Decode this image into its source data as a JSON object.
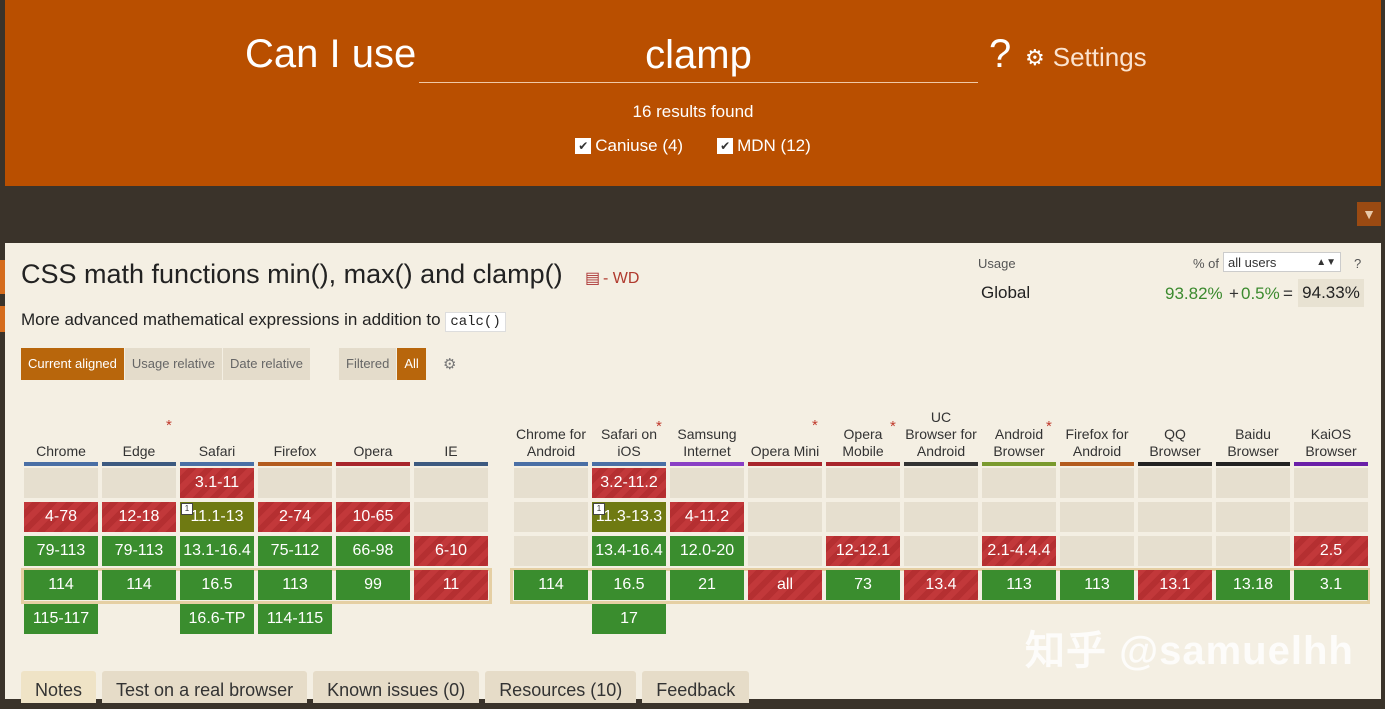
{
  "search": {
    "prefix": "Can I use",
    "query": "clamp",
    "suffix": "?",
    "settings_label": "Settings"
  },
  "results": {
    "summary": "16 results found"
  },
  "filters": [
    {
      "label": "Caniuse (4)",
      "checked": true
    },
    {
      "label": "MDN (12)",
      "checked": true
    }
  ],
  "feature": {
    "title": "CSS math functions min(), max() and clamp()",
    "status": "- WD",
    "description_prefix": "More advanced mathematical expressions in addition to",
    "description_code": "calc()"
  },
  "usage": {
    "label": "Usage",
    "percent_of": "% of",
    "user_select": "all users",
    "help": "?",
    "region": "Global",
    "full": "93.82%",
    "plus": "+",
    "partial": "0.5%",
    "equals": "=",
    "total": "94.33%"
  },
  "view_buttons": [
    "Current aligned",
    "Usage relative",
    "Date relative"
  ],
  "filter_buttons": [
    "Filtered",
    "All"
  ],
  "browsers": [
    {
      "name": "Chrome",
      "bar": "#4a6fa5",
      "star": false,
      "cells": [
        [
          "",
          "e"
        ],
        [
          "4-78",
          "n"
        ],
        [
          "79-113",
          "y"
        ],
        [
          "114",
          "y"
        ],
        [
          "115-117",
          "y"
        ]
      ]
    },
    {
      "name": "Edge",
      "bar": "#3d5a80",
      "star": true,
      "cells": [
        [
          "",
          "e"
        ],
        [
          "12-18",
          "n"
        ],
        [
          "79-113",
          "y"
        ],
        [
          "114",
          "y"
        ],
        [
          "",
          ""
        ]
      ]
    },
    {
      "name": "Safari",
      "bar": "#4a6fa5",
      "star": false,
      "cells": [
        [
          "3.1-11",
          "n"
        ],
        [
          "11.1-13",
          "a"
        ],
        [
          "13.1-16.4",
          "y"
        ],
        [
          "16.5",
          "y"
        ],
        [
          "16.6-TP",
          "y"
        ]
      ]
    },
    {
      "name": "Firefox",
      "bar": "#b35b1e",
      "star": false,
      "cells": [
        [
          "",
          "e"
        ],
        [
          "2-74",
          "n"
        ],
        [
          "75-112",
          "y"
        ],
        [
          "113",
          "y"
        ],
        [
          "114-115",
          "y"
        ]
      ]
    },
    {
      "name": "Opera",
      "bar": "#a8252b",
      "star": false,
      "cells": [
        [
          "",
          "e"
        ],
        [
          "10-65",
          "n"
        ],
        [
          "66-98",
          "y"
        ],
        [
          "99",
          "y"
        ],
        [
          "",
          ""
        ]
      ]
    },
    {
      "name": "IE",
      "bar": "#3d5a80",
      "star": false,
      "cells": [
        [
          "",
          "e"
        ],
        [
          "",
          "e"
        ],
        [
          "6-10",
          "n"
        ],
        [
          "11",
          "n"
        ],
        [
          "",
          ""
        ]
      ]
    },
    {
      "name": "Chrome for Android",
      "bar": "#4a6fa5",
      "star": false,
      "cells": [
        [
          "",
          "e"
        ],
        [
          "",
          "e"
        ],
        [
          "",
          "e"
        ],
        [
          "114",
          "y"
        ],
        [
          "",
          ""
        ]
      ]
    },
    {
      "name": "Safari on iOS",
      "bar": "#4a6fa5",
      "star": true,
      "cells": [
        [
          "3.2-11.2",
          "n"
        ],
        [
          "11.3-13.3",
          "a"
        ],
        [
          "13.4-16.4",
          "y"
        ],
        [
          "16.5",
          "y"
        ],
        [
          "17",
          "y"
        ]
      ]
    },
    {
      "name": "Samsung Internet",
      "bar": "#8a3fc5",
      "star": false,
      "cells": [
        [
          "",
          "e"
        ],
        [
          "4-11.2",
          "n"
        ],
        [
          "12.0-20",
          "y"
        ],
        [
          "21",
          "y"
        ],
        [
          "",
          ""
        ]
      ]
    },
    {
      "name": "Opera Mini",
      "bar": "#a8252b",
      "star": true,
      "cells": [
        [
          "",
          "e"
        ],
        [
          "",
          "e"
        ],
        [
          "",
          "e"
        ],
        [
          "all",
          "n"
        ],
        [
          "",
          ""
        ]
      ]
    },
    {
      "name": "Opera Mobile",
      "bar": "#a8252b",
      "star": true,
      "cells": [
        [
          "",
          "e"
        ],
        [
          "",
          "e"
        ],
        [
          "12-12.1",
          "n"
        ],
        [
          "73",
          "y"
        ],
        [
          "",
          ""
        ]
      ]
    },
    {
      "name": "UC Browser for Android",
      "bar": "#333333",
      "star": false,
      "cells": [
        [
          "",
          "e"
        ],
        [
          "",
          "e"
        ],
        [
          "",
          "e"
        ],
        [
          "13.4",
          "n"
        ],
        [
          "",
          ""
        ]
      ]
    },
    {
      "name": "Android Browser",
      "bar": "#7a9a2e",
      "star": true,
      "cells": [
        [
          "",
          "e"
        ],
        [
          "",
          "e"
        ],
        [
          "2.1-4.4.4",
          "n"
        ],
        [
          "113",
          "y"
        ],
        [
          "",
          ""
        ]
      ]
    },
    {
      "name": "Firefox for Android",
      "bar": "#b35b1e",
      "star": false,
      "cells": [
        [
          "",
          "e"
        ],
        [
          "",
          "e"
        ],
        [
          "",
          "e"
        ],
        [
          "113",
          "y"
        ],
        [
          "",
          ""
        ]
      ]
    },
    {
      "name": "QQ Browser",
      "bar": "#222222",
      "star": false,
      "cells": [
        [
          "",
          "e"
        ],
        [
          "",
          "e"
        ],
        [
          "",
          "e"
        ],
        [
          "13.1",
          "n"
        ],
        [
          "",
          ""
        ]
      ]
    },
    {
      "name": "Baidu Browser",
      "bar": "#222222",
      "star": false,
      "cells": [
        [
          "",
          "e"
        ],
        [
          "",
          "e"
        ],
        [
          "",
          "e"
        ],
        [
          "13.18",
          "y"
        ],
        [
          "",
          ""
        ]
      ]
    },
    {
      "name": "KaiOS Browser",
      "bar": "#6a1fa8",
      "star": false,
      "cells": [
        [
          "",
          "e"
        ],
        [
          "",
          "e"
        ],
        [
          "2.5",
          "n"
        ],
        [
          "3.1",
          "y"
        ],
        [
          "",
          ""
        ]
      ]
    }
  ],
  "tabs": [
    "Notes",
    "Test on a real browser",
    "Known issues (0)",
    "Resources (10)",
    "Feedback"
  ],
  "watermark": "知乎 @samuelhh"
}
